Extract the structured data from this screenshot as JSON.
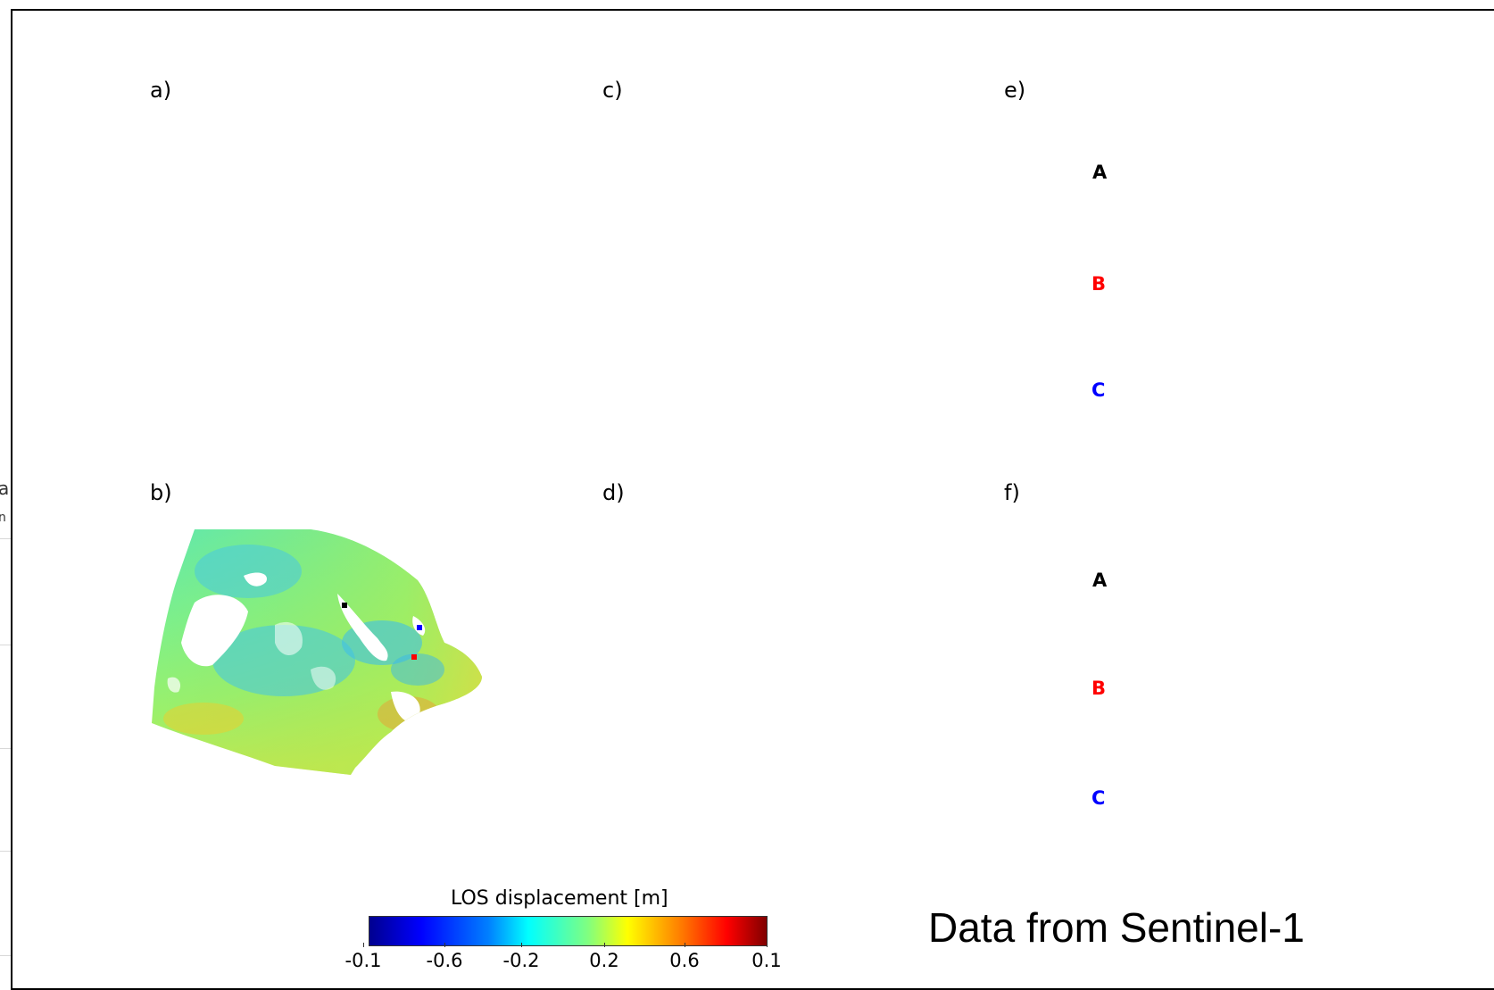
{
  "left_fragment": {
    "text_top": "a",
    "text_bottom": "n"
  },
  "panels": {
    "a": "a)",
    "b": "b)",
    "c": "c)",
    "d": "d)",
    "e": "e)",
    "f": "f)"
  },
  "point_labels": {
    "e": [
      {
        "text": "A",
        "color": "#000000"
      },
      {
        "text": "B",
        "color": "#ff0000"
      },
      {
        "text": "C",
        "color": "#0000ff"
      }
    ],
    "f": [
      {
        "text": "A",
        "color": "#000000"
      },
      {
        "text": "B",
        "color": "#ff0000"
      },
      {
        "text": "C",
        "color": "#0000ff"
      }
    ]
  },
  "map_markers": [
    {
      "name": "A",
      "color": "#000000"
    },
    {
      "name": "C",
      "color": "#0000ff"
    },
    {
      "name": "B",
      "color": "#ff0000"
    }
  ],
  "colorbar": {
    "title": "LOS displacement [m]",
    "ticks": [
      "-0.1",
      "-0.6",
      "-0.2",
      "0.2",
      "0.6",
      "0.1"
    ],
    "colormap": "jet"
  },
  "footer": "Data from Sentinel-1"
}
